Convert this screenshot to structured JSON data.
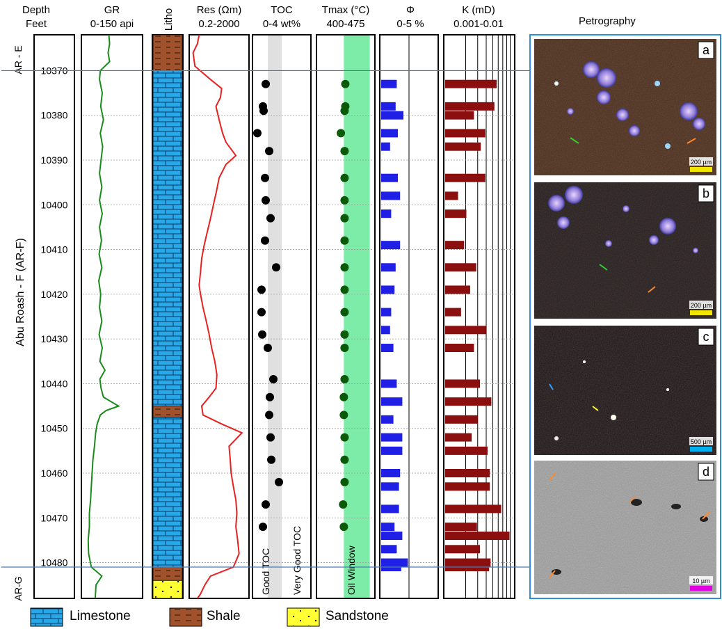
{
  "headers": {
    "depth": [
      "Depth",
      "Feet"
    ],
    "gr": [
      "GR",
      "0-150 api"
    ],
    "litho": "Litho",
    "res": [
      "Res (Ωm)",
      "0.2-2000"
    ],
    "toc": [
      "TOC",
      "0-4 wt%"
    ],
    "tmax": [
      "Tmax (°C)",
      "400-475"
    ],
    "phi": [
      "Φ",
      "0-5 %"
    ],
    "k": [
      "K (mD)",
      "0.001-0.01"
    ],
    "petrography": "Petrography"
  },
  "formations": {
    "top": "AR - E",
    "middle": "Abu Roash - F (AR-F)",
    "bottom": "AR-G"
  },
  "toc_zones": {
    "good": "Good TOC",
    "very_good": "Very Good TOC"
  },
  "tmax_zone": "Oil Window",
  "legend": {
    "limestone": "Limestone",
    "shale": "Shale",
    "sandstone": "Sandstone"
  },
  "panels": [
    {
      "letter": "a",
      "scale": "200 µm",
      "scale_color": "#f2e600"
    },
    {
      "letter": "b",
      "scale": "200 µm",
      "scale_color": "#f2e600"
    },
    {
      "letter": "c",
      "scale": "500 µm",
      "scale_color": "#00b0f0"
    },
    {
      "letter": "d",
      "scale": "10 µm",
      "scale_color": "#e000e0"
    }
  ],
  "colors": {
    "gr": "#1a8a1a",
    "res": "#e82020",
    "toc": "#000000",
    "tmax": "#0a5a0a",
    "phi": "#1f1fe6",
    "k": "#8b0f0f",
    "limestone": "#29a8e8",
    "shale": "#a0522d",
    "sandstone": "#ffff33",
    "oil_window": "#7deca8",
    "very_good_zone": "#e0e0e0",
    "petro_frame": "#2e8fd6"
  },
  "chart_data": {
    "type": "well-log",
    "depth_unit": "Feet",
    "depth_range": [
      10362,
      10488
    ],
    "depth_ticks": [
      10370,
      10380,
      10390,
      10400,
      10410,
      10420,
      10430,
      10440,
      10450,
      10460,
      10470,
      10480
    ],
    "formation_boundaries": [
      10370,
      10481
    ],
    "lithology": [
      {
        "top": 10362,
        "base": 10370,
        "type": "shale"
      },
      {
        "top": 10370,
        "base": 10445,
        "type": "limestone"
      },
      {
        "top": 10445,
        "base": 10447.5,
        "type": "shale"
      },
      {
        "top": 10447.5,
        "base": 10481,
        "type": "limestone"
      },
      {
        "top": 10481,
        "base": 10484,
        "type": "shale"
      },
      {
        "top": 10484,
        "base": 10488,
        "type": "sandstone"
      }
    ],
    "gr": {
      "range": [
        0,
        150
      ],
      "depth": [
        10362,
        10364,
        10366,
        10368,
        10370,
        10372,
        10375,
        10378,
        10381,
        10384,
        10387,
        10390,
        10393,
        10396,
        10399,
        10402,
        10405,
        10408,
        10411,
        10414,
        10417,
        10420,
        10423,
        10426,
        10429,
        10432,
        10435,
        10437,
        10439,
        10441,
        10443,
        10445,
        10446,
        10447,
        10449,
        10451,
        10454,
        10457,
        10460,
        10463,
        10466,
        10469,
        10472,
        10475,
        10478,
        10481,
        10483,
        10485,
        10488
      ],
      "value": [
        67,
        69,
        65,
        69,
        45,
        43,
        50,
        46,
        53,
        45,
        51,
        47,
        43,
        49,
        43,
        50,
        43,
        48,
        42,
        49,
        41,
        46,
        43,
        49,
        42,
        50,
        44,
        57,
        44,
        47,
        53,
        92,
        60,
        45,
        37,
        33,
        30,
        26,
        24,
        22,
        20,
        17,
        17,
        14,
        15,
        22,
        49,
        34,
        32
      ]
    },
    "res": {
      "range": [
        0.2,
        2000
      ],
      "depth": [
        10362,
        10364,
        10366,
        10369,
        10372,
        10374,
        10376,
        10378,
        10381,
        10384,
        10386,
        10389,
        10391,
        10394,
        10397,
        10400,
        10403,
        10406,
        10409,
        10412,
        10415,
        10418,
        10420,
        10423,
        10426,
        10429,
        10432,
        10435,
        10438,
        10441,
        10443,
        10445,
        10447,
        10449,
        10451,
        10454,
        10457,
        10460,
        10463,
        10466,
        10469,
        10472,
        10475,
        10478,
        10481,
        10483,
        10485,
        10487,
        10488
      ],
      "value": [
        0.8,
        0.6,
        0.3,
        0.4,
        5,
        30,
        25,
        12,
        20,
        35,
        60,
        300,
        60,
        20,
        13,
        8,
        5,
        3,
        1.8,
        1.2,
        1,
        0.8,
        1,
        1.5,
        2.5,
        4,
        6,
        10,
        14,
        12,
        4,
        1.2,
        1.5,
        30,
        800,
        100,
        120,
        140,
        200,
        300,
        350,
        300,
        400,
        500,
        200,
        5,
        2,
        1,
        0.6
      ]
    },
    "toc": {
      "range": [
        0,
        4
      ],
      "depth": [
        10373,
        10378,
        10379,
        10384,
        10388,
        10394,
        10399,
        10403,
        10408,
        10414,
        10419,
        10424,
        10429,
        10432,
        10439,
        10443,
        10447,
        10452,
        10457,
        10462,
        10467,
        10472
      ],
      "value": [
        0.85,
        0.65,
        0.7,
        0.25,
        1.1,
        0.8,
        0.85,
        1.2,
        0.8,
        1.6,
        0.55,
        0.55,
        0.6,
        1.0,
        1.4,
        1.15,
        1.1,
        1.2,
        1.25,
        1.8,
        0.85,
        0.65
      ]
    },
    "toc_zones": [
      {
        "label": "Good TOC",
        "range": [
          0,
          1
        ]
      },
      {
        "label": "Very Good TOC",
        "range": [
          1,
          2
        ]
      }
    ],
    "tmax": {
      "range": [
        400,
        475
      ],
      "depth": [
        10373,
        10378,
        10379,
        10384,
        10388,
        10394,
        10399,
        10403,
        10408,
        10414,
        10419,
        10424,
        10429,
        10432,
        10439,
        10443,
        10447,
        10452,
        10457,
        10462,
        10467,
        10472
      ],
      "value": [
        437,
        437,
        436,
        431,
        436,
        436,
        436,
        436,
        436,
        436,
        436,
        436,
        436,
        436,
        436,
        435,
        435,
        436,
        436,
        436,
        434,
        435
      ]
    },
    "tmax_zones": [
      {
        "label": "Oil Window",
        "range": [
          435,
          470
        ]
      }
    ],
    "phi": {
      "range": [
        0,
        5
      ],
      "depth": [
        10373,
        10378,
        10380,
        10384,
        10387,
        10394,
        10398,
        10402,
        10409,
        10414,
        10419,
        10424,
        10428,
        10432,
        10440,
        10444,
        10448,
        10452,
        10455,
        10460,
        10463,
        10468,
        10472,
        10474,
        10477,
        10480,
        10481
      ],
      "value": [
        1.4,
        1.3,
        2.0,
        1.5,
        0.8,
        1.5,
        1.7,
        0.9,
        1.7,
        1.3,
        1.2,
        0.9,
        0.8,
        1.1,
        1.4,
        1.9,
        1.1,
        1.9,
        1.9,
        1.7,
        1.6,
        1.6,
        1.2,
        1.9,
        1.4,
        2.4,
        1.8
      ]
    },
    "k": {
      "range": [
        0.001,
        0.01
      ],
      "depth": [
        10373,
        10378,
        10380,
        10384,
        10387,
        10394,
        10398,
        10402,
        10409,
        10414,
        10419,
        10424,
        10428,
        10432,
        10440,
        10444,
        10448,
        10452,
        10455,
        10460,
        10463,
        10468,
        10472,
        10474,
        10477,
        10480,
        10481
      ],
      "value": [
        0.0078,
        0.0075,
        0.0048,
        0.0063,
        0.0057,
        0.0063,
        0.0027,
        0.0038,
        0.0035,
        0.0051,
        0.0043,
        0.0031,
        0.0064,
        0.0048,
        0.0056,
        0.0071,
        0.0053,
        0.0045,
        0.0066,
        0.0069,
        0.0069,
        0.0084,
        0.0052,
        0.0095,
        0.0056,
        0.007,
        0.0068
      ]
    }
  }
}
